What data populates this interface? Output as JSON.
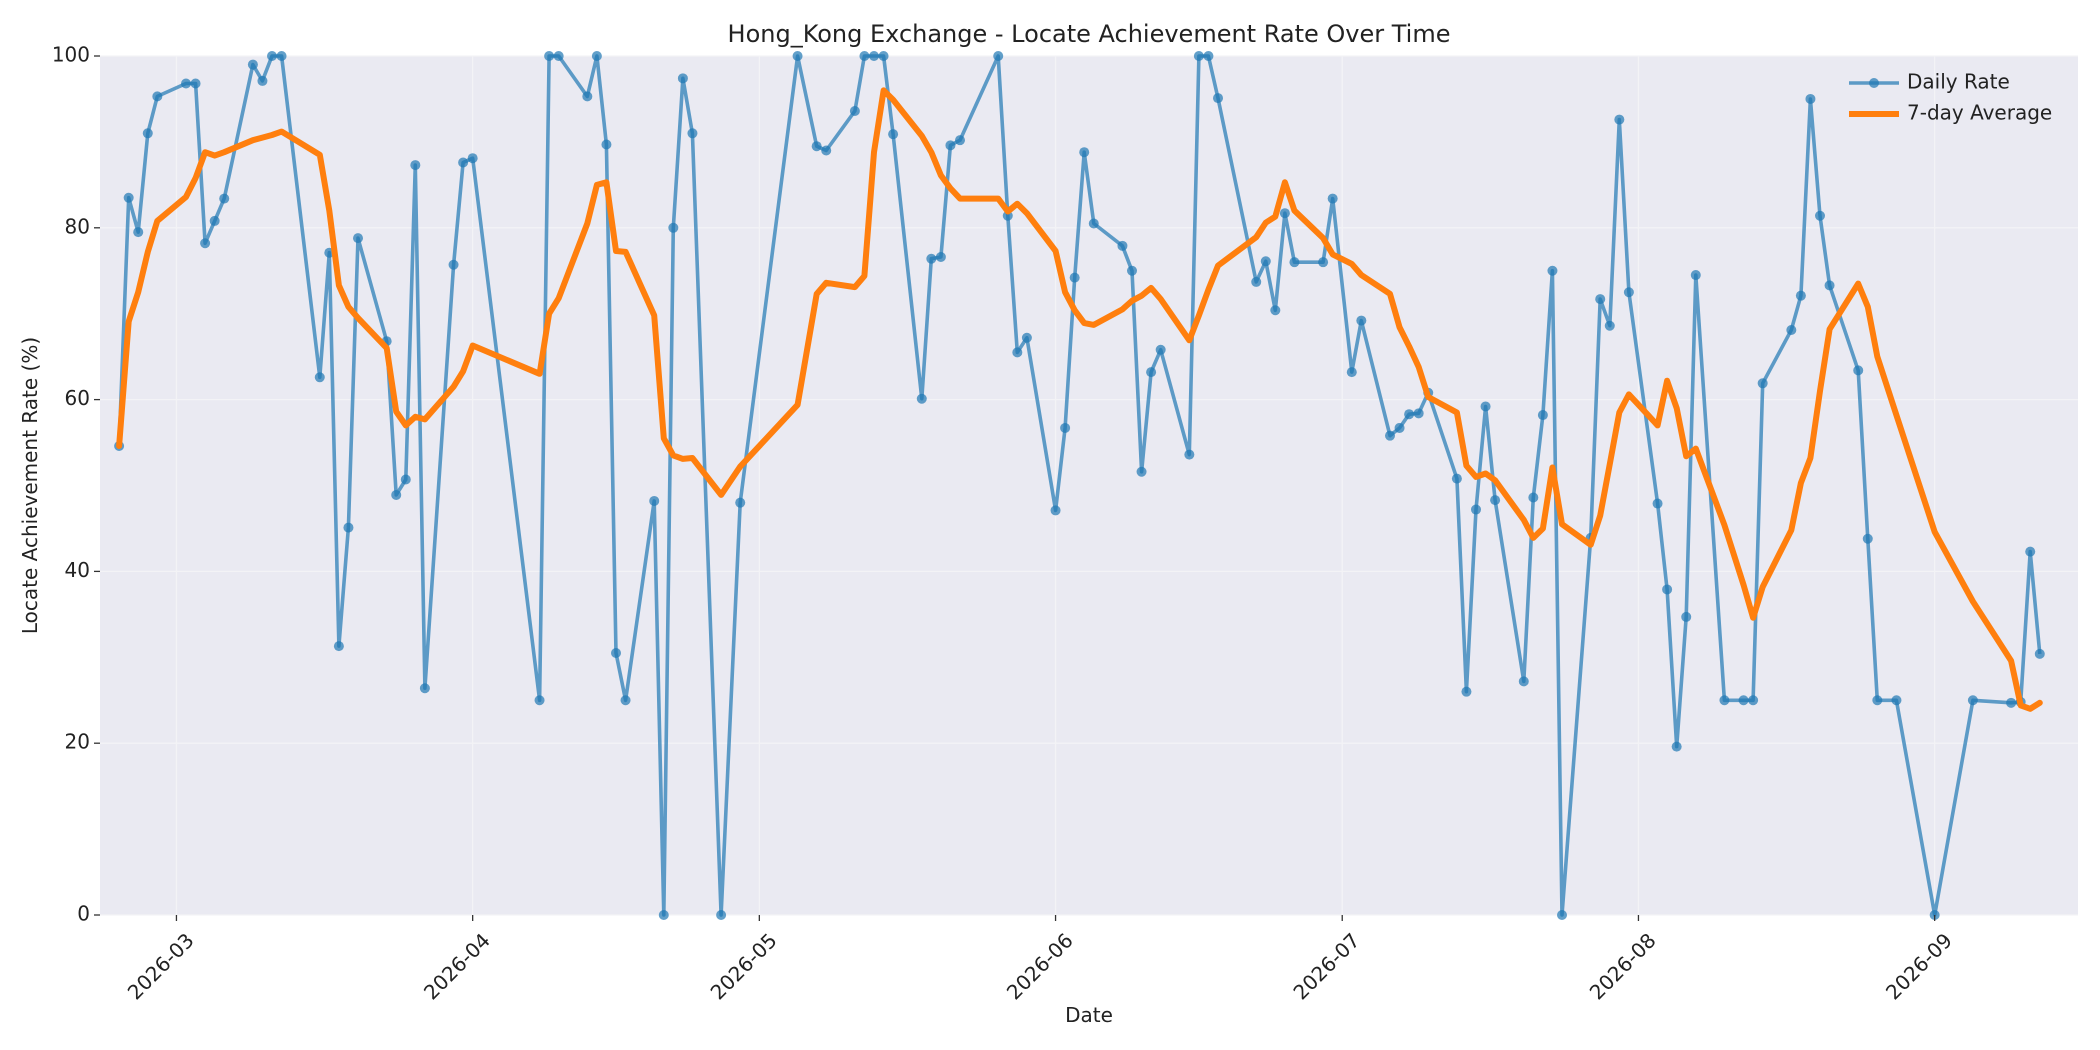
{
  "chart_data": {
    "type": "line",
    "title": "Hong_Kong Exchange - Locate Achievement Rate Over Time",
    "xlabel": "Date",
    "ylabel": "Locate Achievement Rate (%)",
    "xlim": [
      "2026-02-21",
      "2026-09-16"
    ],
    "ylim": [
      0,
      100
    ],
    "x_ticks": [
      "2026-03-01",
      "2026-04-01",
      "2026-05-01",
      "2026-06-01",
      "2026-07-01",
      "2026-08-01",
      "2026-09-01"
    ],
    "x_tick_labels": [
      "2026-03",
      "2026-04",
      "2026-05",
      "2026-06",
      "2026-07",
      "2026-08",
      "2026-09"
    ],
    "y_ticks": [
      0,
      20,
      40,
      60,
      80,
      100
    ],
    "grid": true,
    "legend_position": "top-right",
    "colors": {
      "plot_background": "#eaeaf2",
      "grid": "#f3f3f6",
      "daily": "#1f77b4",
      "average": "#ff7f0e"
    },
    "series": [
      {
        "name": "Daily Rate",
        "style": "line-marker",
        "points": [
          [
            "2026-02-23",
            54.6
          ],
          [
            "2026-02-24",
            83.5
          ],
          [
            "2026-02-25",
            79.5
          ],
          [
            "2026-02-26",
            91.0
          ],
          [
            "2026-02-27",
            95.3
          ],
          [
            "2026-03-02",
            96.8
          ],
          [
            "2026-03-03",
            96.8
          ],
          [
            "2026-03-04",
            78.2
          ],
          [
            "2026-03-05",
            80.8
          ],
          [
            "2026-03-06",
            83.4
          ],
          [
            "2026-03-09",
            99.0
          ],
          [
            "2026-03-10",
            97.1
          ],
          [
            "2026-03-11",
            100
          ],
          [
            "2026-03-12",
            100
          ],
          [
            "2026-03-16",
            62.6
          ],
          [
            "2026-03-17",
            77.1
          ],
          [
            "2026-03-18",
            31.3
          ],
          [
            "2026-03-19",
            45.1
          ],
          [
            "2026-03-20",
            78.8
          ],
          [
            "2026-03-23",
            66.8
          ],
          [
            "2026-03-24",
            48.9
          ],
          [
            "2026-03-25",
            50.7
          ],
          [
            "2026-03-26",
            87.3
          ],
          [
            "2026-03-27",
            26.4
          ],
          [
            "2026-03-30",
            75.7
          ],
          [
            "2026-03-31",
            87.6
          ],
          [
            "2026-04-01",
            88.1
          ],
          [
            "2026-04-08",
            25.0
          ],
          [
            "2026-04-09",
            100
          ],
          [
            "2026-04-10",
            100
          ],
          [
            "2026-04-13",
            95.3
          ],
          [
            "2026-04-14",
            100
          ],
          [
            "2026-04-15",
            89.7
          ],
          [
            "2026-04-16",
            30.5
          ],
          [
            "2026-04-17",
            25.0
          ],
          [
            "2026-04-20",
            48.2
          ],
          [
            "2026-04-21",
            0
          ],
          [
            "2026-04-22",
            80.0
          ],
          [
            "2026-04-23",
            97.4
          ],
          [
            "2026-04-24",
            91.0
          ],
          [
            "2026-04-27",
            0
          ],
          [
            "2026-04-29",
            48.0
          ],
          [
            "2026-05-05",
            100
          ],
          [
            "2026-05-07",
            89.5
          ],
          [
            "2026-05-08",
            89.0
          ],
          [
            "2026-05-11",
            93.6
          ],
          [
            "2026-05-12",
            100
          ],
          [
            "2026-05-13",
            100
          ],
          [
            "2026-05-14",
            100
          ],
          [
            "2026-05-15",
            90.9
          ],
          [
            "2026-05-18",
            60.1
          ],
          [
            "2026-05-19",
            76.4
          ],
          [
            "2026-05-20",
            76.6
          ],
          [
            "2026-05-21",
            89.6
          ],
          [
            "2026-05-22",
            90.2
          ],
          [
            "2026-05-26",
            100
          ],
          [
            "2026-05-27",
            81.4
          ],
          [
            "2026-05-28",
            65.5
          ],
          [
            "2026-05-29",
            67.2
          ],
          [
            "2026-06-01",
            47.1
          ],
          [
            "2026-06-02",
            56.7
          ],
          [
            "2026-06-03",
            74.2
          ],
          [
            "2026-06-04",
            88.8
          ],
          [
            "2026-06-05",
            80.5
          ],
          [
            "2026-06-08",
            77.9
          ],
          [
            "2026-06-09",
            75.0
          ],
          [
            "2026-06-10",
            51.6
          ],
          [
            "2026-06-11",
            63.2
          ],
          [
            "2026-06-12",
            65.8
          ],
          [
            "2026-06-15",
            53.6
          ],
          [
            "2026-06-16",
            100
          ],
          [
            "2026-06-17",
            100
          ],
          [
            "2026-06-18",
            95.1
          ],
          [
            "2026-06-22",
            73.7
          ],
          [
            "2026-06-23",
            76.1
          ],
          [
            "2026-06-24",
            70.4
          ],
          [
            "2026-06-25",
            81.7
          ],
          [
            "2026-06-26",
            76.0
          ],
          [
            "2026-06-29",
            76.0
          ],
          [
            "2026-06-30",
            83.4
          ],
          [
            "2026-07-02",
            63.2
          ],
          [
            "2026-07-03",
            69.2
          ],
          [
            "2026-07-06",
            55.8
          ],
          [
            "2026-07-07",
            56.7
          ],
          [
            "2026-07-08",
            58.3
          ],
          [
            "2026-07-09",
            58.4
          ],
          [
            "2026-07-10",
            60.8
          ],
          [
            "2026-07-13",
            50.8
          ],
          [
            "2026-07-14",
            26.0
          ],
          [
            "2026-07-15",
            47.2
          ],
          [
            "2026-07-16",
            59.2
          ],
          [
            "2026-07-17",
            48.3
          ],
          [
            "2026-07-20",
            27.2
          ],
          [
            "2026-07-21",
            48.6
          ],
          [
            "2026-07-22",
            58.2
          ],
          [
            "2026-07-23",
            75.0
          ],
          [
            "2026-07-24",
            0
          ],
          [
            "2026-07-27",
            43.9
          ],
          [
            "2026-07-28",
            71.7
          ],
          [
            "2026-07-29",
            68.6
          ],
          [
            "2026-07-30",
            92.6
          ],
          [
            "2026-07-31",
            72.5
          ],
          [
            "2026-08-03",
            47.9
          ],
          [
            "2026-08-04",
            37.9
          ],
          [
            "2026-08-05",
            19.6
          ],
          [
            "2026-08-06",
            34.7
          ],
          [
            "2026-08-07",
            74.5
          ],
          [
            "2026-08-10",
            25.0
          ],
          [
            "2026-08-12",
            25.0
          ],
          [
            "2026-08-13",
            25.0
          ],
          [
            "2026-08-14",
            61.9
          ],
          [
            "2026-08-17",
            68.1
          ],
          [
            "2026-08-18",
            72.1
          ],
          [
            "2026-08-19",
            95.0
          ],
          [
            "2026-08-20",
            81.4
          ],
          [
            "2026-08-21",
            73.3
          ],
          [
            "2026-08-24",
            63.4
          ],
          [
            "2026-08-25",
            43.8
          ],
          [
            "2026-08-26",
            25.0
          ],
          [
            "2026-08-28",
            25.0
          ],
          [
            "2026-09-01",
            0
          ],
          [
            "2026-09-05",
            25.0
          ],
          [
            "2026-09-09",
            24.7
          ],
          [
            "2026-09-10",
            24.8
          ],
          [
            "2026-09-11",
            42.3
          ],
          [
            "2026-09-12",
            30.4
          ]
        ]
      },
      {
        "name": "7-day Average",
        "style": "thick-line",
        "points": [
          [
            "2026-02-23",
            54.6
          ],
          [
            "2026-02-24",
            69.1
          ],
          [
            "2026-02-25",
            72.5
          ],
          [
            "2026-02-26",
            77.2
          ],
          [
            "2026-02-27",
            80.8
          ],
          [
            "2026-03-02",
            83.6
          ],
          [
            "2026-03-03",
            85.8
          ],
          [
            "2026-03-04",
            88.8
          ],
          [
            "2026-03-05",
            88.4
          ],
          [
            "2026-03-06",
            88.8
          ],
          [
            "2026-03-09",
            90.2
          ],
          [
            "2026-03-10",
            90.5
          ],
          [
            "2026-03-11",
            90.8
          ],
          [
            "2026-03-12",
            91.2
          ],
          [
            "2026-03-16",
            88.5
          ],
          [
            "2026-03-17",
            82.0
          ],
          [
            "2026-03-18",
            73.3
          ],
          [
            "2026-03-19",
            70.8
          ],
          [
            "2026-03-20",
            69.5
          ],
          [
            "2026-03-23",
            66.0
          ],
          [
            "2026-03-24",
            58.6
          ],
          [
            "2026-03-25",
            57.0
          ],
          [
            "2026-03-26",
            58.0
          ],
          [
            "2026-03-27",
            57.7
          ],
          [
            "2026-03-30",
            61.5
          ],
          [
            "2026-03-31",
            63.3
          ],
          [
            "2026-04-01",
            66.3
          ],
          [
            "2026-04-08",
            63.0
          ],
          [
            "2026-04-09",
            70.0
          ],
          [
            "2026-04-10",
            71.8
          ],
          [
            "2026-04-13",
            80.5
          ],
          [
            "2026-04-14",
            85.0
          ],
          [
            "2026-04-15",
            85.3
          ],
          [
            "2026-04-16",
            77.3
          ],
          [
            "2026-04-17",
            77.2
          ],
          [
            "2026-04-20",
            69.8
          ],
          [
            "2026-04-21",
            55.5
          ],
          [
            "2026-04-22",
            53.5
          ],
          [
            "2026-04-23",
            53.1
          ],
          [
            "2026-04-24",
            53.2
          ],
          [
            "2026-04-27",
            48.9
          ],
          [
            "2026-04-29",
            52.2
          ],
          [
            "2026-05-05",
            59.4
          ],
          [
            "2026-05-07",
            72.3
          ],
          [
            "2026-05-08",
            73.6
          ],
          [
            "2026-05-11",
            73.1
          ],
          [
            "2026-05-12",
            74.4
          ],
          [
            "2026-05-13",
            88.8
          ],
          [
            "2026-05-14",
            96.0
          ],
          [
            "2026-05-15",
            94.9
          ],
          [
            "2026-05-18",
            90.7
          ],
          [
            "2026-05-19",
            88.8
          ],
          [
            "2026-05-20",
            86.1
          ],
          [
            "2026-05-21",
            84.6
          ],
          [
            "2026-05-22",
            83.4
          ],
          [
            "2026-05-26",
            83.4
          ],
          [
            "2026-05-27",
            81.9
          ],
          [
            "2026-05-28",
            82.8
          ],
          [
            "2026-05-29",
            81.7
          ],
          [
            "2026-06-01",
            77.3
          ],
          [
            "2026-06-02",
            72.5
          ],
          [
            "2026-06-03",
            70.4
          ],
          [
            "2026-06-04",
            68.9
          ],
          [
            "2026-06-05",
            68.7
          ],
          [
            "2026-06-08",
            70.5
          ],
          [
            "2026-06-09",
            71.5
          ],
          [
            "2026-06-10",
            72.1
          ],
          [
            "2026-06-11",
            73.0
          ],
          [
            "2026-06-12",
            71.7
          ],
          [
            "2026-06-15",
            66.9
          ],
          [
            "2026-06-16",
            69.8
          ],
          [
            "2026-06-17",
            72.8
          ],
          [
            "2026-06-18",
            75.6
          ],
          [
            "2026-06-22",
            78.9
          ],
          [
            "2026-06-23",
            80.6
          ],
          [
            "2026-06-24",
            81.3
          ],
          [
            "2026-06-25",
            85.3
          ],
          [
            "2026-06-26",
            82.0
          ],
          [
            "2026-06-29",
            78.8
          ],
          [
            "2026-06-30",
            76.9
          ],
          [
            "2026-07-02",
            75.8
          ],
          [
            "2026-07-03",
            74.5
          ],
          [
            "2026-07-06",
            72.3
          ],
          [
            "2026-07-07",
            68.4
          ],
          [
            "2026-07-08",
            66.2
          ],
          [
            "2026-07-09",
            63.8
          ],
          [
            "2026-07-10",
            60.3
          ],
          [
            "2026-07-13",
            58.5
          ],
          [
            "2026-07-14",
            52.3
          ],
          [
            "2026-07-15",
            51.0
          ],
          [
            "2026-07-16",
            51.4
          ],
          [
            "2026-07-17",
            50.6
          ],
          [
            "2026-07-20",
            46.0
          ],
          [
            "2026-07-21",
            43.9
          ],
          [
            "2026-07-22",
            45.0
          ],
          [
            "2026-07-23",
            52.1
          ],
          [
            "2026-07-24",
            45.5
          ],
          [
            "2026-07-27",
            43.1
          ],
          [
            "2026-07-28",
            46.5
          ],
          [
            "2026-07-29",
            52.5
          ],
          [
            "2026-07-30",
            58.5
          ],
          [
            "2026-07-31",
            60.6
          ],
          [
            "2026-08-03",
            57.0
          ],
          [
            "2026-08-04",
            62.2
          ],
          [
            "2026-08-05",
            59.0
          ],
          [
            "2026-08-06",
            53.4
          ],
          [
            "2026-08-07",
            54.3
          ],
          [
            "2026-08-10",
            45.4
          ],
          [
            "2026-08-12",
            38.4
          ],
          [
            "2026-08-13",
            34.6
          ],
          [
            "2026-08-14",
            38.2
          ],
          [
            "2026-08-17",
            44.8
          ],
          [
            "2026-08-18",
            50.3
          ],
          [
            "2026-08-19",
            53.2
          ],
          [
            "2026-08-20",
            61.0
          ],
          [
            "2026-08-21",
            68.2
          ],
          [
            "2026-08-24",
            73.5
          ],
          [
            "2026-08-25",
            70.8
          ],
          [
            "2026-08-26",
            65.0
          ],
          [
            "2026-08-28",
            58.2
          ],
          [
            "2026-09-01",
            44.6
          ],
          [
            "2026-09-05",
            36.5
          ],
          [
            "2026-09-09",
            29.6
          ],
          [
            "2026-09-10",
            24.4
          ],
          [
            "2026-09-11",
            24.0
          ],
          [
            "2026-09-12",
            24.7
          ]
        ]
      }
    ]
  }
}
